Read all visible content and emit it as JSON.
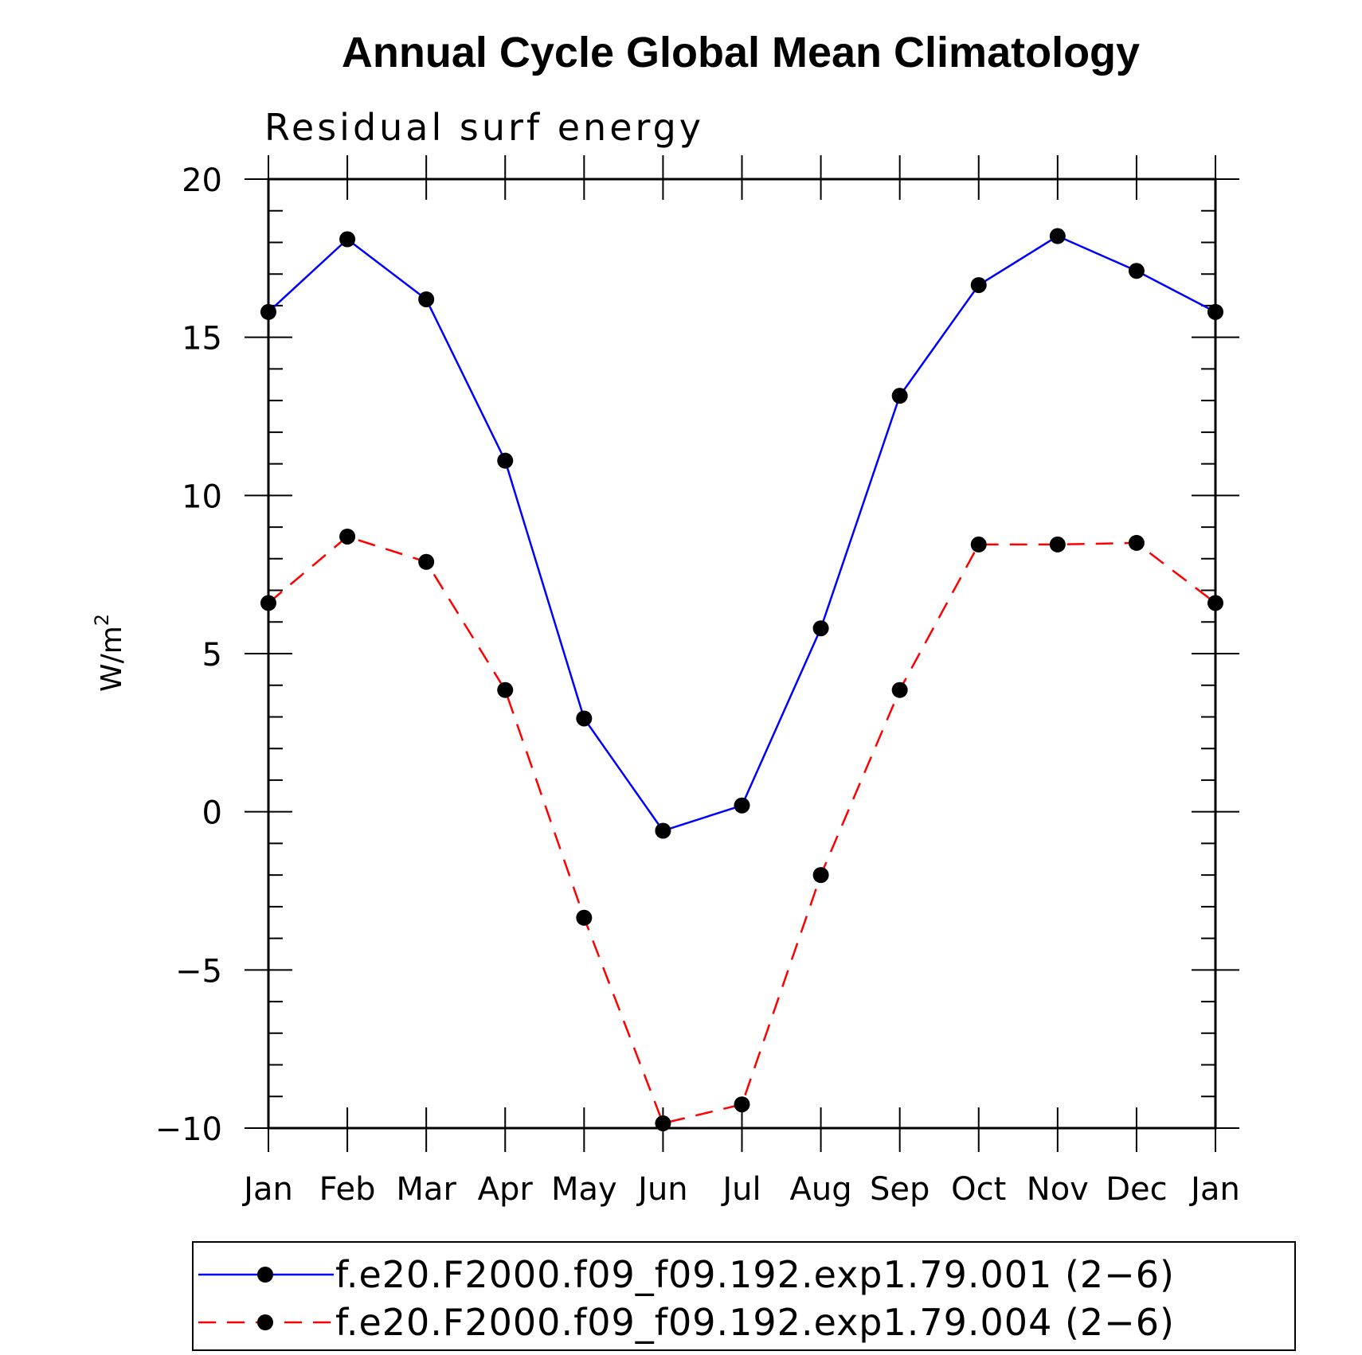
{
  "chart_data": {
    "type": "line",
    "title": "Annual Cycle Global Mean Climatology",
    "subtitle": "Residual surf energy",
    "xlabel": "",
    "ylabel": "W/m",
    "ylabel_superscript": "2",
    "categories": [
      "Jan",
      "Feb",
      "Mar",
      "Apr",
      "May",
      "Jun",
      "Jul",
      "Aug",
      "Sep",
      "Oct",
      "Nov",
      "Dec",
      "Jan"
    ],
    "ylim": [
      -10,
      20
    ],
    "yticks": [
      -10,
      -5,
      0,
      5,
      10,
      15,
      20
    ],
    "ytick_labels": [
      "−10",
      "−5",
      "0",
      "5",
      "10",
      "15",
      "20"
    ],
    "grid": false,
    "legend_position": "bottom",
    "series": [
      {
        "name": "f.e20.F2000.f09_f09.192.exp1.79.001 (2−6)",
        "color": "#0000ff",
        "dash": "solid",
        "marker": "filled-circle",
        "values": [
          15.8,
          18.1,
          16.2,
          11.1,
          2.95,
          -0.6,
          0.2,
          5.8,
          13.15,
          16.65,
          18.2,
          17.1,
          15.8
        ]
      },
      {
        "name": "f.e20.F2000.f09_f09.192.exp1.79.004 (2−6)",
        "color": "#ff0000",
        "dash": "dashed",
        "marker": "filled-circle",
        "values": [
          6.6,
          8.7,
          7.9,
          3.85,
          -3.35,
          -9.85,
          -9.25,
          -2.0,
          3.85,
          8.45,
          8.45,
          8.5,
          6.6
        ]
      }
    ]
  }
}
